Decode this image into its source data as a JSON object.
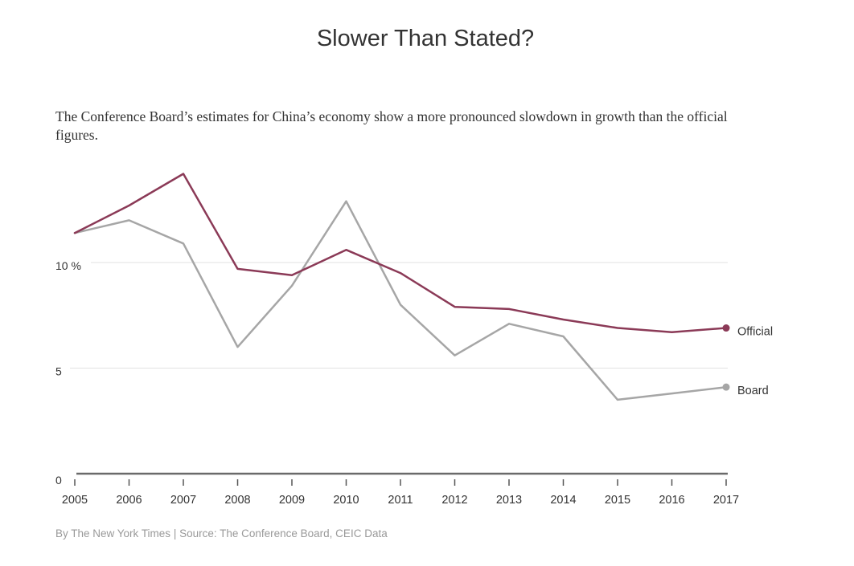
{
  "header": {
    "title": "Slower Than Stated?",
    "subtitle": "The Conference Board’s estimates for China’s economy show a more pronounced slowdown in growth than the official figures."
  },
  "footer": {
    "credit": "By The New York Times | Source: The Conference Board, CEIC Data"
  },
  "colors": {
    "official": "#8b3a57",
    "board": "#a6a6a6",
    "gridline": "#e2e2e2",
    "baseline": "#6a6a6a"
  },
  "chart_data": {
    "type": "line",
    "title": "Slower Than Stated?",
    "xlabel": "",
    "ylabel": "",
    "x": [
      2005,
      2006,
      2007,
      2008,
      2009,
      2010,
      2011,
      2012,
      2013,
      2014,
      2015,
      2016,
      2017
    ],
    "x_tick_labels": [
      "2005",
      "2006",
      "2007",
      "2008",
      "2009",
      "2010",
      "2011",
      "2012",
      "2013",
      "2014",
      "2015",
      "2016",
      "2017"
    ],
    "y_ticks": [
      0,
      5,
      10
    ],
    "y_tick_labels": [
      "0",
      "5",
      "10 %"
    ],
    "ylim": [
      0,
      15
    ],
    "grid": true,
    "legend": "direct labels at right end of lines",
    "series": [
      {
        "name": "Official",
        "color": "#8b3a57",
        "values": [
          11.4,
          12.7,
          14.2,
          9.7,
          9.4,
          10.6,
          9.5,
          7.9,
          7.8,
          7.3,
          6.9,
          6.7,
          6.9
        ]
      },
      {
        "name": "Board",
        "color": "#a6a6a6",
        "values": [
          11.4,
          12.0,
          10.9,
          6.0,
          8.9,
          12.9,
          8.0,
          5.6,
          7.1,
          6.5,
          3.5,
          3.8,
          4.1
        ]
      }
    ]
  }
}
